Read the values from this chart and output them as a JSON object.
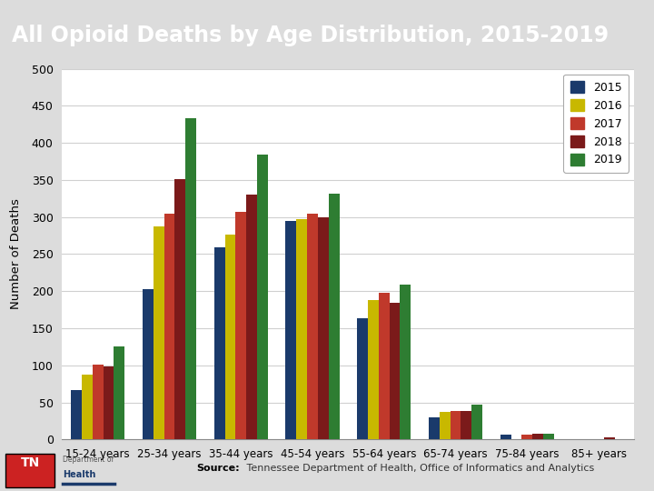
{
  "title": "All Opioid Deaths by Age Distribution, 2015-2019",
  "title_bg_color": "#1e3a5f",
  "title_text_color": "#ffffff",
  "ylabel": "Number of Deaths",
  "categories": [
    "15-24 years",
    "25-34 years",
    "35-44 years",
    "45-54 years",
    "55-64 years",
    "65-74 years",
    "75-84 years",
    "85+ years"
  ],
  "years": [
    "2015",
    "2016",
    "2017",
    "2018",
    "2019"
  ],
  "colors": {
    "2015": "#1a3a6b",
    "2016": "#c8b800",
    "2017": "#c0392b",
    "2018": "#7b1a1a",
    "2019": "#2e7d32"
  },
  "data": {
    "2015": [
      67,
      203,
      259,
      295,
      163,
      30,
      7,
      0
    ],
    "2016": [
      87,
      287,
      276,
      297,
      188,
      37,
      0,
      0
    ],
    "2017": [
      101,
      304,
      307,
      304,
      198,
      38,
      7,
      0
    ],
    "2018": [
      98,
      351,
      330,
      300,
      184,
      38,
      8,
      3
    ],
    "2019": [
      126,
      433,
      384,
      332,
      209,
      47,
      8,
      0
    ]
  },
  "ylim": [
    0,
    500
  ],
  "yticks": [
    0,
    50,
    100,
    150,
    200,
    250,
    300,
    350,
    400,
    450,
    500
  ],
  "source_bold": "Source:",
  "source_normal": " Tennessee Department of Health, Office of Informatics and Analytics",
  "bar_width": 0.15,
  "plot_bg_color": "#ffffff",
  "fig_bg_color": "#dcdcdc",
  "grid_color": "#d0d0d0",
  "footer_bg_color": "#dcdcdc",
  "tn_logo_color": "#cc2222",
  "tn_underline_color": "#1a3a6b"
}
